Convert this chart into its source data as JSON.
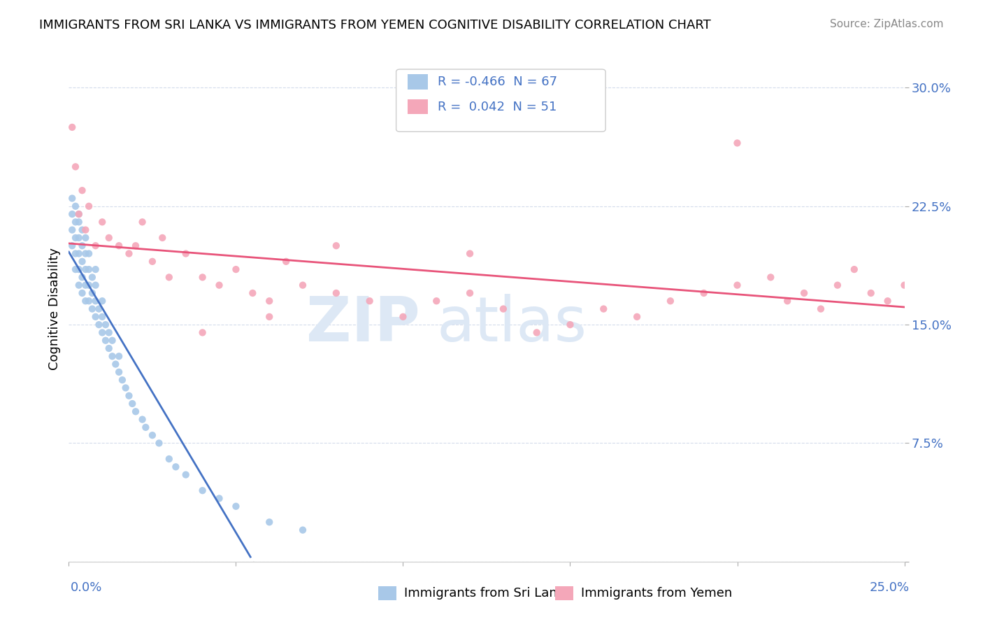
{
  "title": "IMMIGRANTS FROM SRI LANKA VS IMMIGRANTS FROM YEMEN COGNITIVE DISABILITY CORRELATION CHART",
  "source": "Source: ZipAtlas.com",
  "ylabel": "Cognitive Disability",
  "xlim": [
    0.0,
    0.25
  ],
  "ylim": [
    0.0,
    0.32
  ],
  "yticks": [
    0.0,
    0.075,
    0.15,
    0.225,
    0.3
  ],
  "ytick_labels": [
    "",
    "7.5%",
    "15.0%",
    "22.5%",
    "30.0%"
  ],
  "series1": {
    "label": "Immigrants from Sri Lanka",
    "R": -0.466,
    "N": 67,
    "color": "#a8c8e8",
    "line_color": "#4472c4",
    "x": [
      0.001,
      0.001,
      0.001,
      0.001,
      0.002,
      0.002,
      0.002,
      0.002,
      0.002,
      0.003,
      0.003,
      0.003,
      0.003,
      0.003,
      0.003,
      0.004,
      0.004,
      0.004,
      0.004,
      0.004,
      0.005,
      0.005,
      0.005,
      0.005,
      0.005,
      0.006,
      0.006,
      0.006,
      0.006,
      0.007,
      0.007,
      0.007,
      0.008,
      0.008,
      0.008,
      0.008,
      0.009,
      0.009,
      0.01,
      0.01,
      0.01,
      0.011,
      0.011,
      0.012,
      0.012,
      0.013,
      0.013,
      0.014,
      0.015,
      0.015,
      0.016,
      0.017,
      0.018,
      0.019,
      0.02,
      0.022,
      0.023,
      0.025,
      0.027,
      0.03,
      0.032,
      0.035,
      0.04,
      0.045,
      0.05,
      0.06,
      0.07
    ],
    "y": [
      0.2,
      0.21,
      0.22,
      0.23,
      0.185,
      0.195,
      0.205,
      0.215,
      0.225,
      0.175,
      0.185,
      0.195,
      0.205,
      0.215,
      0.22,
      0.17,
      0.18,
      0.19,
      0.2,
      0.21,
      0.165,
      0.175,
      0.185,
      0.195,
      0.205,
      0.165,
      0.175,
      0.185,
      0.195,
      0.16,
      0.17,
      0.18,
      0.155,
      0.165,
      0.175,
      0.185,
      0.15,
      0.16,
      0.145,
      0.155,
      0.165,
      0.14,
      0.15,
      0.135,
      0.145,
      0.13,
      0.14,
      0.125,
      0.12,
      0.13,
      0.115,
      0.11,
      0.105,
      0.1,
      0.095,
      0.09,
      0.085,
      0.08,
      0.075,
      0.065,
      0.06,
      0.055,
      0.045,
      0.04,
      0.035,
      0.025,
      0.02
    ]
  },
  "series2": {
    "label": "Immigrants from Yemen",
    "R": 0.042,
    "N": 51,
    "color": "#f4a7b9",
    "line_color": "#e8547a",
    "x": [
      0.001,
      0.002,
      0.003,
      0.004,
      0.005,
      0.006,
      0.008,
      0.01,
      0.012,
      0.015,
      0.018,
      0.02,
      0.022,
      0.025,
      0.028,
      0.03,
      0.035,
      0.04,
      0.045,
      0.05,
      0.055,
      0.06,
      0.065,
      0.07,
      0.08,
      0.09,
      0.1,
      0.11,
      0.12,
      0.13,
      0.14,
      0.15,
      0.16,
      0.17,
      0.18,
      0.19,
      0.2,
      0.21,
      0.215,
      0.22,
      0.225,
      0.23,
      0.235,
      0.24,
      0.245,
      0.25,
      0.12,
      0.06,
      0.08,
      0.04,
      0.2
    ],
    "y": [
      0.275,
      0.25,
      0.22,
      0.235,
      0.21,
      0.225,
      0.2,
      0.215,
      0.205,
      0.2,
      0.195,
      0.2,
      0.215,
      0.19,
      0.205,
      0.18,
      0.195,
      0.18,
      0.175,
      0.185,
      0.17,
      0.165,
      0.19,
      0.175,
      0.17,
      0.165,
      0.155,
      0.165,
      0.17,
      0.16,
      0.145,
      0.15,
      0.16,
      0.155,
      0.165,
      0.17,
      0.175,
      0.18,
      0.165,
      0.17,
      0.16,
      0.175,
      0.185,
      0.17,
      0.165,
      0.175,
      0.195,
      0.155,
      0.2,
      0.145,
      0.265
    ]
  },
  "watermark_zip": "ZIP",
  "watermark_atlas": "atlas",
  "bg_color": "#ffffff",
  "grid_color": "#d0d8ea",
  "title_fontsize": 13,
  "source_fontsize": 11,
  "tick_fontsize": 13,
  "legend_fontsize": 13
}
